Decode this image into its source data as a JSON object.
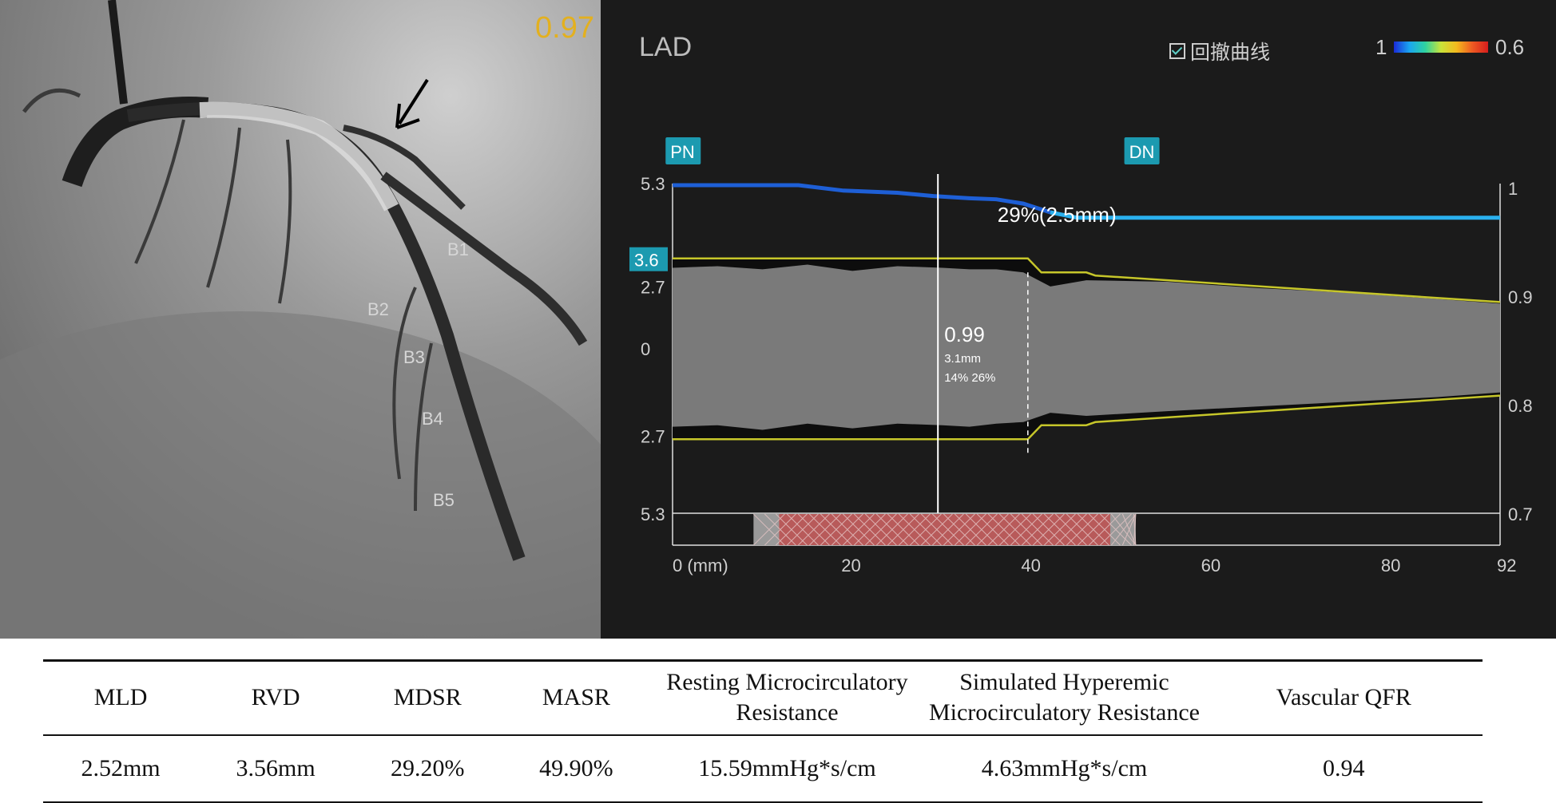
{
  "angiogram": {
    "qfr_value": "0.97",
    "branch_labels": [
      "B1",
      "B2",
      "B3",
      "B4",
      "B5"
    ]
  },
  "qfr_panel": {
    "vessel": "LAD",
    "pullback_label": "回撤曲线",
    "pullback_checked": true,
    "color_scale": {
      "min_label": "1",
      "max_label": "0.6"
    },
    "markers": {
      "proximal": "PN",
      "distal": "DN"
    },
    "left_axis_labels": [
      "5.3",
      "3.6",
      "2.7",
      "0",
      "2.7",
      "5.3"
    ],
    "right_axis_labels": [
      "1",
      "0.9",
      "0.8",
      "0.7"
    ],
    "x_axis_labels": [
      "0 (mm)",
      "20",
      "40",
      "60",
      "80",
      "92"
    ],
    "stenosis_label": "29%(2.5mm)",
    "cursor": {
      "qfr": "0.99",
      "diameter": "3.1mm",
      "stenosis": "14% 26%"
    }
  },
  "chart_data": {
    "type": "line",
    "title": "LAD",
    "xlabel": "mm",
    "xlim": [
      0,
      92
    ],
    "ylim_diameter_mm": [
      -5.3,
      5.3
    ],
    "ylim_qfr": [
      0.7,
      1.0
    ],
    "marker_positions_mm": {
      "PN": 1,
      "DN": 52
    },
    "cursor_position_mm": 29.5,
    "lesion_dashed_line_mm": 39.5,
    "stent_segment_mm": [
      9,
      51.5
    ],
    "series": [
      {
        "name": "QFR pullback",
        "x": [
          0,
          14,
          19,
          25,
          29,
          33,
          36,
          39,
          42,
          45,
          92
        ],
        "values": [
          1.0,
          1.0,
          0.995,
          0.993,
          0.99,
          0.988,
          0.987,
          0.983,
          0.975,
          0.97,
          0.97
        ]
      },
      {
        "name": "Reference diameter upper",
        "x": [
          0,
          39.5,
          41,
          46,
          47,
          92
        ],
        "values": [
          2.9,
          2.9,
          2.45,
          2.45,
          2.35,
          1.5
        ]
      },
      {
        "name": "Reference diameter lower",
        "x": [
          0,
          39.5,
          41,
          46,
          47,
          92
        ],
        "values": [
          -2.9,
          -2.9,
          -2.45,
          -2.45,
          -2.35,
          -1.5
        ]
      },
      {
        "name": "Lumen upper",
        "x": [
          0,
          5,
          10,
          15,
          20,
          25,
          30,
          33,
          36,
          39,
          42,
          46,
          55,
          65,
          75,
          85,
          92
        ],
        "values": [
          2.6,
          2.65,
          2.55,
          2.7,
          2.5,
          2.65,
          2.6,
          2.55,
          2.55,
          2.45,
          2.0,
          2.2,
          2.15,
          1.95,
          1.8,
          1.6,
          1.45
        ]
      },
      {
        "name": "Lumen lower",
        "x": [
          0,
          5,
          10,
          15,
          20,
          25,
          30,
          33,
          36,
          39,
          42,
          46,
          55,
          65,
          75,
          85,
          92
        ],
        "values": [
          -2.5,
          -2.45,
          -2.6,
          -2.4,
          -2.55,
          -2.4,
          -2.45,
          -2.5,
          -2.4,
          -2.35,
          -2.05,
          -2.15,
          -2.0,
          -1.85,
          -1.7,
          -1.55,
          -1.4
        ]
      }
    ]
  },
  "results_table": {
    "headers": [
      "MLD",
      "RVD",
      "MDSR",
      "MASR",
      "Resting Microcirculatory Resistance",
      "Simulated Hyperemic Microcirculatory Resistance",
      "Vascular QFR"
    ],
    "values": [
      "2.52mm",
      "3.56mm",
      "29.20%",
      "49.90%",
      "15.59mmHg*s/cm",
      "4.63mmHg*s/cm",
      "0.94"
    ]
  }
}
